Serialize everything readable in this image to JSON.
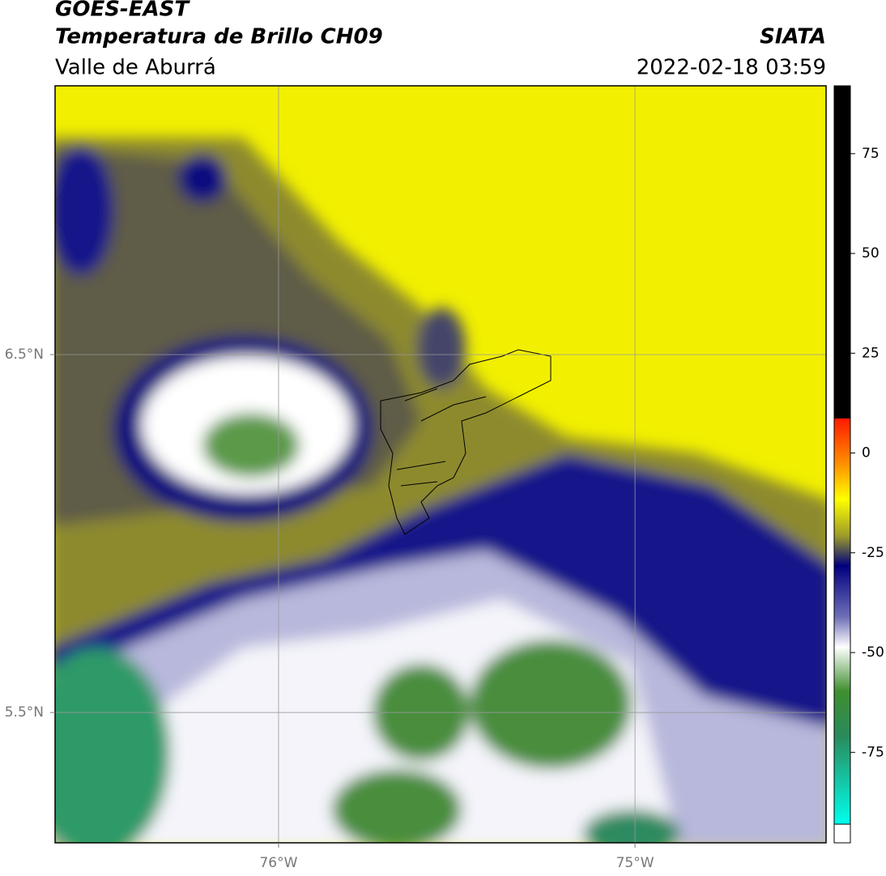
{
  "header": {
    "title": "GOES-EAST",
    "subtitle": "Temperatura de Brillo CH09",
    "region": "Valle de Aburrá",
    "source": "SIATA",
    "timestamp": "2022-02-18 03:59"
  },
  "map": {
    "xlim": [
      -76.627,
      -74.464
    ],
    "ylim": [
      5.136,
      7.251
    ],
    "xticks": [
      {
        "value": -76,
        "label": "76°W"
      },
      {
        "value": -75,
        "label": "75°W"
      }
    ],
    "yticks": [
      {
        "value": 6.5,
        "label": "6.5°N"
      },
      {
        "value": 5.5,
        "label": "5.5°N"
      }
    ],
    "grid": true
  },
  "colorbar": {
    "lim": [
      -93,
      92
    ],
    "ticks": [
      75,
      50,
      25,
      0,
      -25,
      -50,
      -75
    ]
  }
}
